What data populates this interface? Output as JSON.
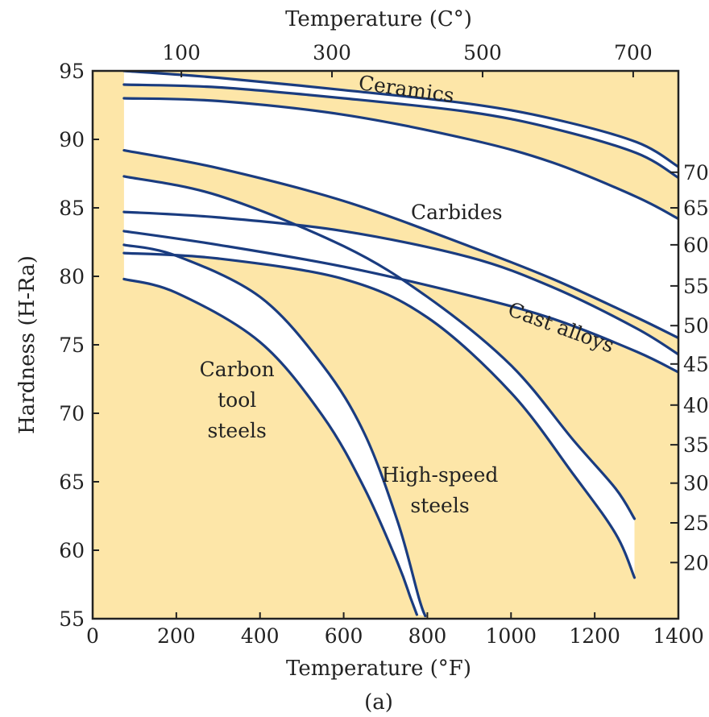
{
  "chart_data": {
    "type": "line",
    "caption": "(a)",
    "xlabel": "Temperature (°F)",
    "x2label": "Temperature (C°)",
    "ylabel": "Hardness (H-Ra)",
    "xlim": [
      0,
      1400
    ],
    "ylim": [
      55,
      95
    ],
    "x_ticks": [
      "0",
      "200",
      "400",
      "600",
      "800",
      "1000",
      "1200",
      "1400"
    ],
    "y_ticks": [
      "55",
      "60",
      "65",
      "70",
      "75",
      "80",
      "85",
      "90",
      "95"
    ],
    "x2_ticks": [
      {
        "label": "100",
        "f": 212
      },
      {
        "label": "300",
        "f": 572
      },
      {
        "label": "500",
        "f": 932
      },
      {
        "label": "700",
        "f": 1292
      }
    ],
    "y2_ticks": [
      {
        "label": "70",
        "y": 87.6
      },
      {
        "label": "65",
        "y": 85
      },
      {
        "label": "60",
        "y": 82.3
      },
      {
        "label": "55",
        "y": 79.3
      },
      {
        "label": "50",
        "y": 76.4
      },
      {
        "label": "45",
        "y": 73.6
      },
      {
        "label": "40",
        "y": 70.6
      },
      {
        "label": "35",
        "y": 67.7
      },
      {
        "label": "30",
        "y": 64.9
      },
      {
        "label": "25",
        "y": 62
      },
      {
        "label": "20",
        "y": 59.1
      }
    ],
    "regions": [
      {
        "name": "Ceramics",
        "lines": [
          "Ceramics"
        ],
        "x": 750,
        "y": 93.7,
        "rotate": 8
      },
      {
        "name": "Carbides",
        "lines": [
          "Carbides"
        ],
        "x": 870,
        "y": 84.7,
        "rotate": 0
      },
      {
        "name": "Cast alloys",
        "lines": [
          "Cast alloys"
        ],
        "x": 1120,
        "y": 76.3,
        "rotate": 20
      },
      {
        "name": "Carbon tool steels",
        "lines": [
          "Carbon",
          "tool",
          "steels"
        ],
        "x": 345,
        "y": 71,
        "rotate": 0
      },
      {
        "name": "High-speed steels",
        "lines": [
          "High-speed",
          "steels"
        ],
        "x": 830,
        "y": 64.4,
        "rotate": 0
      }
    ],
    "bands": [
      {
        "name": "Ceramics",
        "upper": [
          [
            75,
            95
          ],
          [
            300,
            94.5
          ],
          [
            600,
            93.6
          ],
          [
            900,
            92.6
          ],
          [
            1100,
            91.5
          ],
          [
            1300,
            89.8
          ],
          [
            1400,
            88
          ]
        ],
        "lower": [
          [
            75,
            94
          ],
          [
            300,
            93.8
          ],
          [
            600,
            93
          ],
          [
            900,
            92
          ],
          [
            1100,
            90.8
          ],
          [
            1300,
            89
          ],
          [
            1400,
            87.2
          ]
        ]
      },
      {
        "name": "Carbides",
        "upper": [
          [
            75,
            93
          ],
          [
            300,
            92.8
          ],
          [
            600,
            91.8
          ],
          [
            900,
            90
          ],
          [
            1100,
            88.3
          ],
          [
            1300,
            85.8
          ],
          [
            1400,
            84.2
          ]
        ],
        "lower": [
          [
            75,
            89.2
          ],
          [
            300,
            87.9
          ],
          [
            600,
            85.5
          ],
          [
            900,
            82.2
          ],
          [
            1100,
            79.8
          ],
          [
            1300,
            77
          ],
          [
            1400,
            75.5
          ]
        ]
      },
      {
        "name": "Cast alloys",
        "upper": [
          [
            75,
            84.7
          ],
          [
            300,
            84.3
          ],
          [
            600,
            83.3
          ],
          [
            900,
            81.4
          ],
          [
            1100,
            79.2
          ],
          [
            1300,
            76.2
          ],
          [
            1400,
            74.3
          ]
        ],
        "lower": [
          [
            75,
            83.3
          ],
          [
            300,
            82.3
          ],
          [
            600,
            80.7
          ],
          [
            900,
            78.6
          ],
          [
            1100,
            76.9
          ],
          [
            1300,
            74.5
          ],
          [
            1400,
            73
          ]
        ]
      },
      {
        "name": "High-speed steels",
        "upper": [
          [
            75,
            87.3
          ],
          [
            300,
            85.9
          ],
          [
            600,
            82.2
          ],
          [
            800,
            78.5
          ],
          [
            1000,
            73.5
          ],
          [
            1150,
            68
          ],
          [
            1250,
            64.5
          ],
          [
            1295,
            62.3
          ]
        ],
        "lower": [
          [
            75,
            81.7
          ],
          [
            300,
            81.3
          ],
          [
            600,
            79.8
          ],
          [
            800,
            77
          ],
          [
            1000,
            71.5
          ],
          [
            1150,
            65.5
          ],
          [
            1250,
            61.2
          ],
          [
            1295,
            58
          ]
        ]
      },
      {
        "name": "Carbon tool steels",
        "upper": [
          [
            75,
            82.3
          ],
          [
            200,
            81.5
          ],
          [
            400,
            78.5
          ],
          [
            550,
            73.5
          ],
          [
            650,
            68.5
          ],
          [
            730,
            62
          ],
          [
            780,
            56.5
          ],
          [
            795,
            55.2
          ]
        ],
        "lower": [
          [
            75,
            79.8
          ],
          [
            200,
            78.8
          ],
          [
            400,
            75.2
          ],
          [
            550,
            69.8
          ],
          [
            650,
            64.5
          ],
          [
            730,
            59
          ],
          [
            760,
            56.5
          ],
          [
            775,
            55.3
          ]
        ]
      }
    ],
    "style": {
      "background": "#fde6a8",
      "band_fill": "#ffffff",
      "line_color": "#1a3c80",
      "grid": false
    }
  }
}
